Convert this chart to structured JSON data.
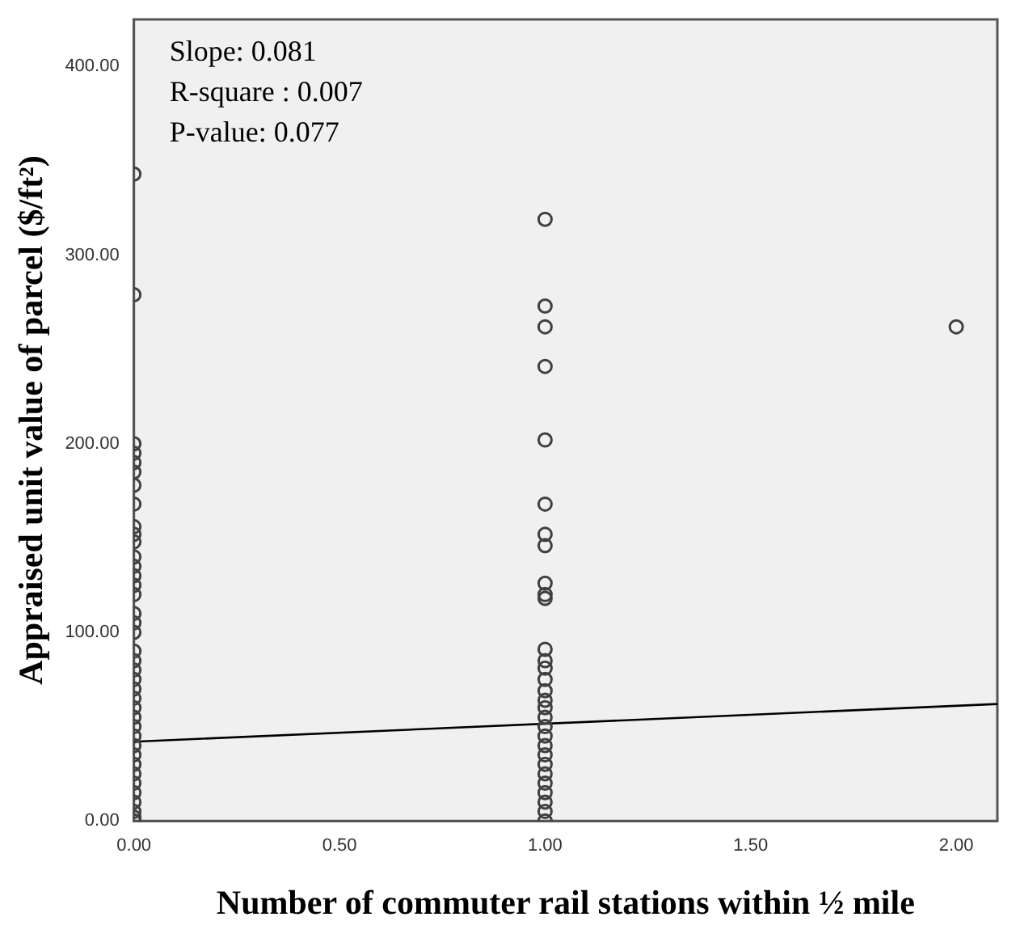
{
  "chart_data": {
    "type": "scatter",
    "xlabel": "Number of commuter rail stations within ½ mile",
    "ylabel": "Appraised unit value of parcel ($/ft²)",
    "annotations": [
      "Slope: 0.081",
      "R-square : 0.007",
      "P-value: 0.077"
    ],
    "xlim": [
      0,
      2.1
    ],
    "xticks": [
      {
        "value": 0,
        "label": "0.00"
      },
      {
        "value": 0.5,
        "label": "0.50"
      },
      {
        "value": 1,
        "label": "1.00"
      },
      {
        "value": 1.5,
        "label": "1.50"
      },
      {
        "value": 2,
        "label": "2.00"
      }
    ],
    "ylim": [
      0,
      425
    ],
    "yticks": [
      {
        "value": 0,
        "label": "0.00"
      },
      {
        "value": 100,
        "label": "100.00"
      },
      {
        "value": 200,
        "label": "200.00"
      },
      {
        "value": 300,
        "label": "300.00"
      },
      {
        "value": 400,
        "label": "400.00"
      }
    ],
    "grid": false,
    "marker": "circle",
    "series": [
      {
        "type": "scatter",
        "color": "#404040",
        "x": [
          0,
          0,
          0,
          0,
          0,
          0,
          0,
          0,
          0,
          0,
          0,
          0,
          0,
          0,
          0,
          0,
          0,
          0,
          0,
          0,
          0,
          0,
          0,
          0,
          0,
          0,
          0,
          0,
          0,
          0,
          0,
          0,
          0,
          0,
          0,
          0,
          0,
          0,
          0,
          1,
          1,
          1,
          1,
          1,
          1,
          1,
          1,
          1,
          1,
          1,
          1,
          1,
          1,
          1,
          1,
          1,
          1,
          1,
          1,
          1,
          1,
          1,
          1,
          1,
          1,
          1,
          1,
          1,
          1,
          2
        ],
        "values": [
          343,
          279,
          200,
          195,
          190,
          185,
          178,
          168,
          156,
          152,
          148,
          140,
          135,
          130,
          125,
          120,
          110,
          105,
          100,
          90,
          85,
          80,
          75,
          70,
          65,
          60,
          55,
          50,
          45,
          40,
          35,
          30,
          25,
          20,
          15,
          10,
          5,
          2,
          0,
          319,
          273,
          262,
          241,
          202,
          168,
          152,
          146,
          126,
          120,
          118,
          91,
          85,
          81,
          75,
          69,
          64,
          60,
          55,
          50,
          45,
          40,
          35,
          30,
          25,
          20,
          15,
          10,
          5,
          0,
          262
        ]
      },
      {
        "type": "line",
        "color": "#000000",
        "marker": "none",
        "x": [
          0,
          2.1
        ],
        "values": [
          42,
          62
        ]
      }
    ]
  }
}
